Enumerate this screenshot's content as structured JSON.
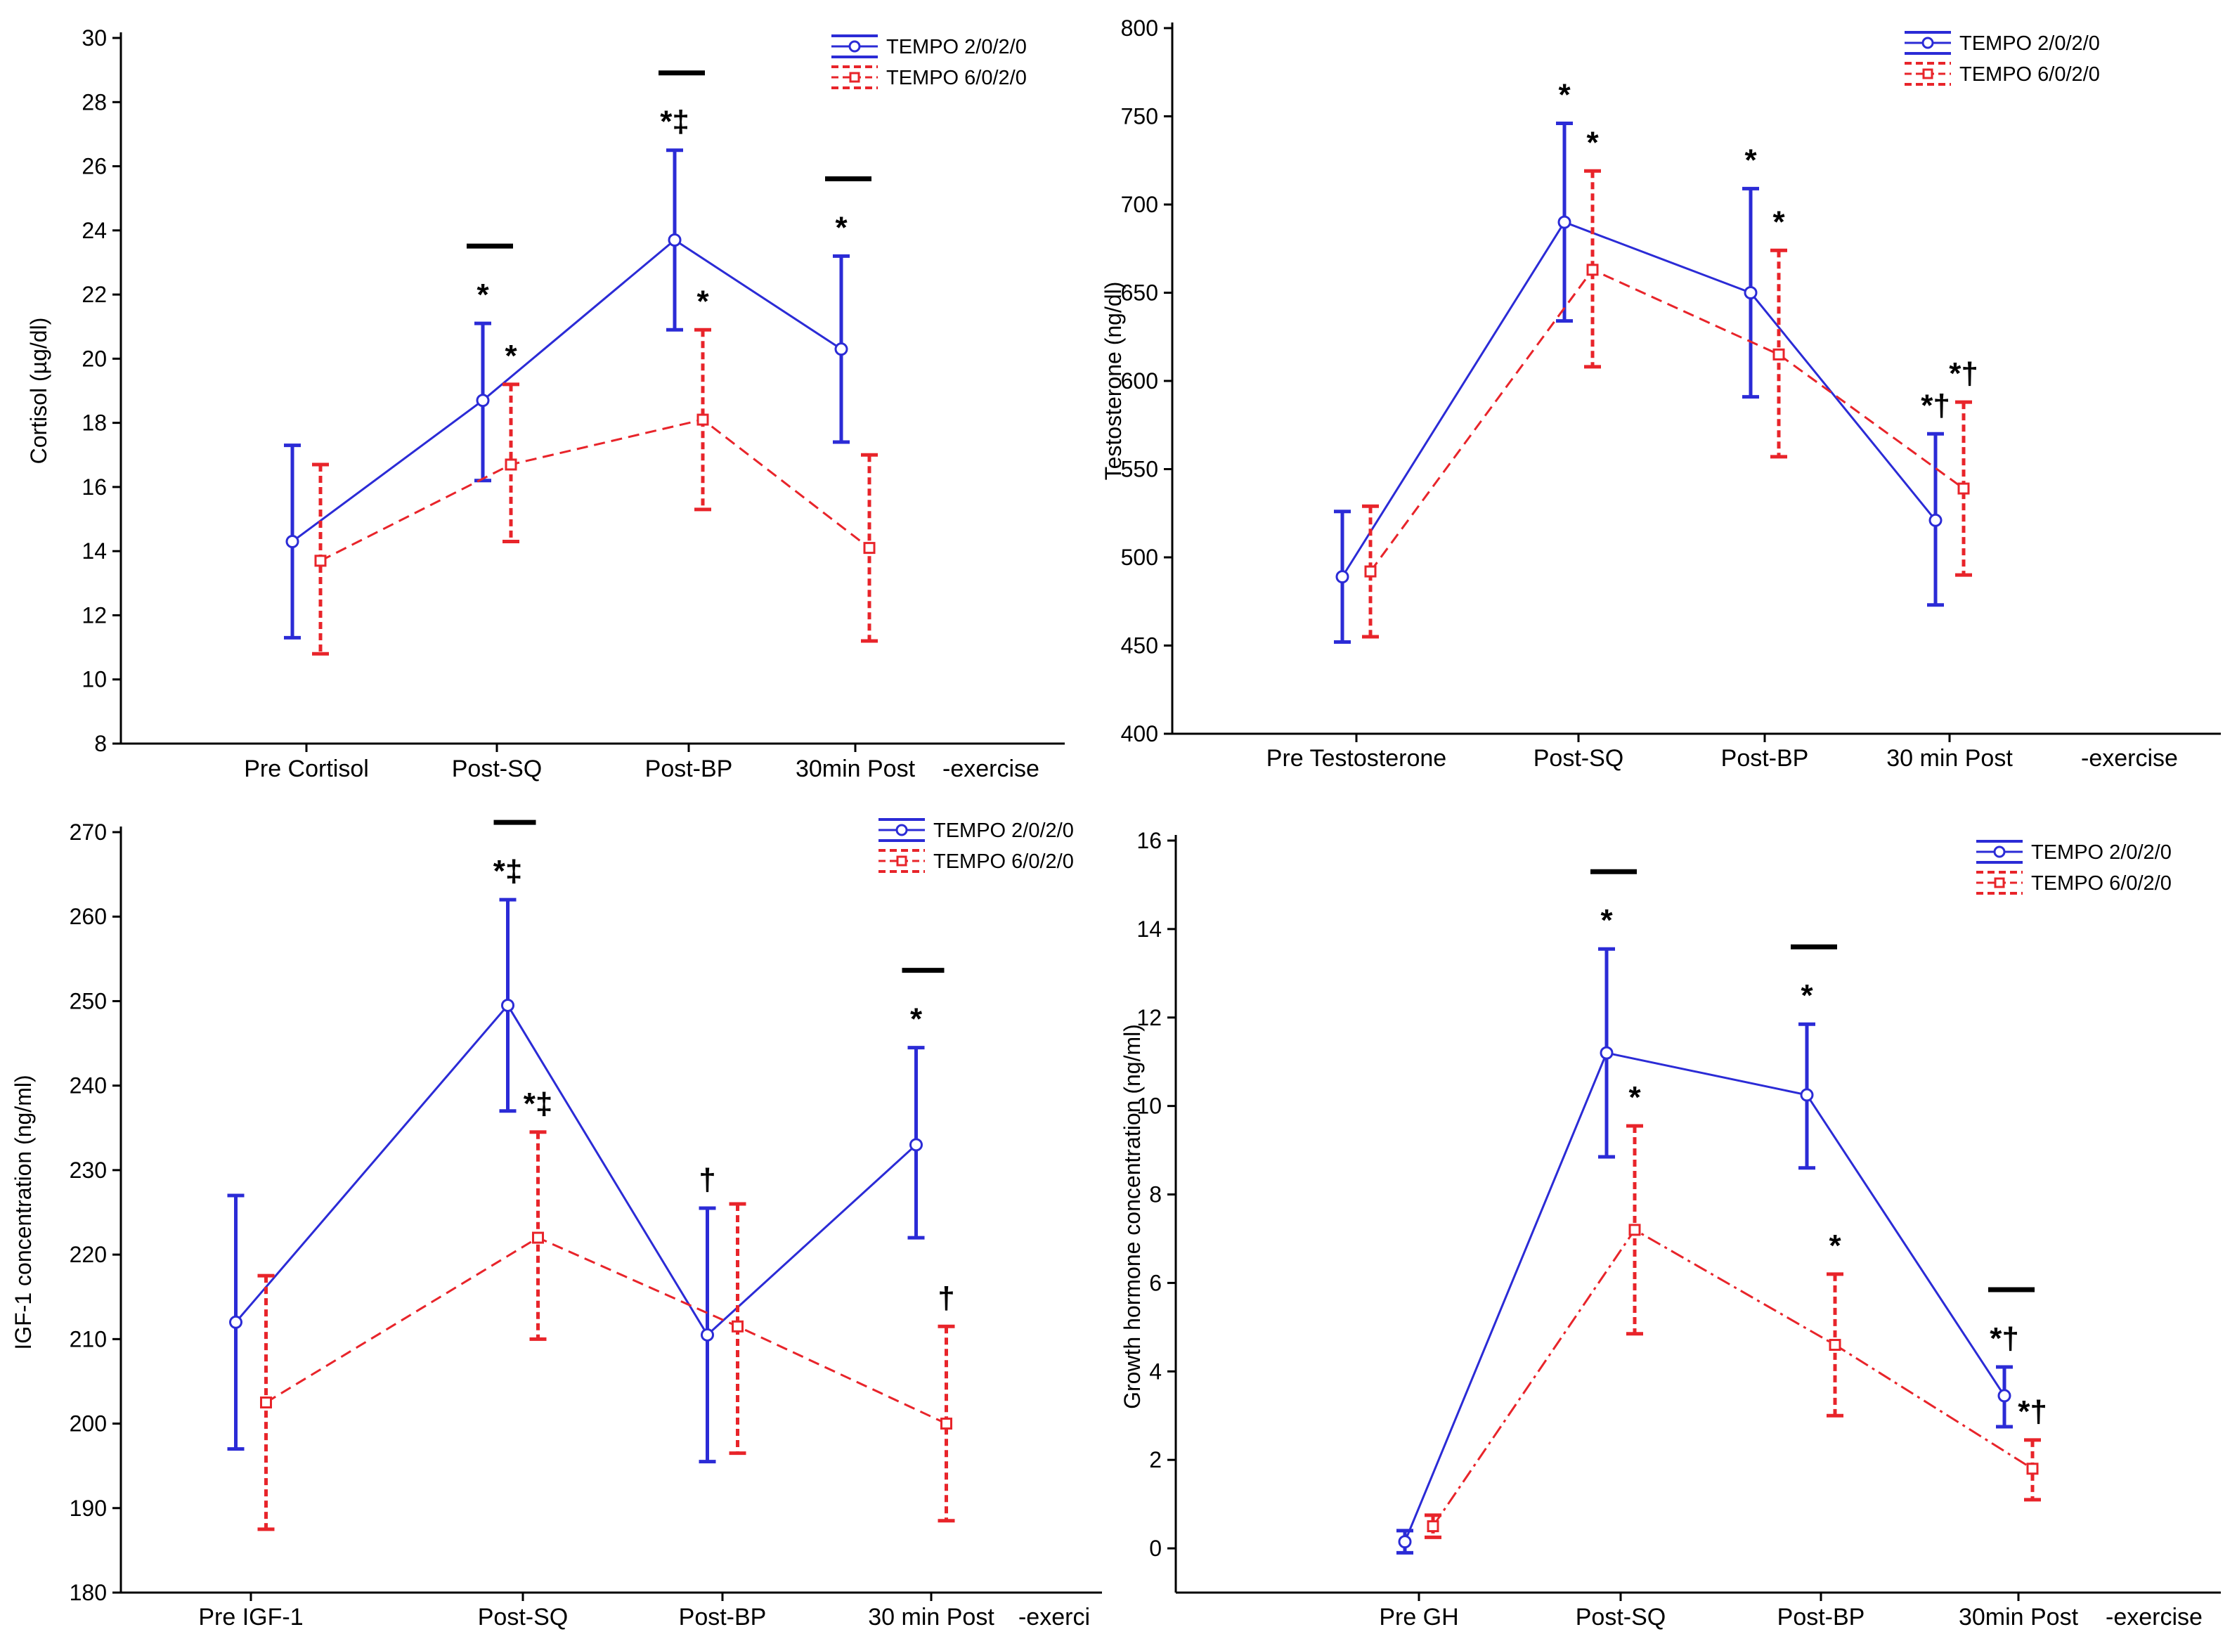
{
  "charts": [
    {
      "id": "cortisol",
      "type": "line",
      "title": "",
      "ylabel": "Cortisol (µg/dl)",
      "ylim": [
        8,
        30
      ],
      "yticks": [
        8,
        10,
        12,
        14,
        16,
        18,
        20,
        22,
        24,
        26,
        28,
        30
      ],
      "categories": [
        "Pre Cortisol",
        "Post-SQ",
        "Post-BP",
        "30min Post"
      ],
      "axis_suffix": "-exercise",
      "legend": [
        "TEMPO 2/0/2/0",
        "TEMPO 6/0/2/0"
      ],
      "series": [
        {
          "name": "TEMPO 2/0/2/0",
          "color": "#2b2bd6",
          "style": "solid",
          "values": [
            14.3,
            18.7,
            23.7,
            20.3
          ],
          "lower": [
            11.3,
            16.2,
            20.9,
            17.4
          ],
          "upper": [
            17.3,
            21.1,
            26.5,
            23.2
          ]
        },
        {
          "name": "TEMPO 6/0/2/0",
          "color": "#e8242a",
          "style": "dashed",
          "values": [
            13.7,
            16.7,
            18.1,
            14.1
          ],
          "lower": [
            10.8,
            14.3,
            15.3,
            11.2
          ],
          "upper": [
            16.7,
            19.2,
            20.9,
            17.0
          ]
        }
      ],
      "annotations": [
        {
          "cat": 1,
          "series": 0,
          "text": "*"
        },
        {
          "cat": 1,
          "series": 1,
          "text": "*"
        },
        {
          "cat": 2,
          "series": 0,
          "text": "*‡"
        },
        {
          "cat": 2,
          "series": 1,
          "text": "*"
        },
        {
          "cat": 3,
          "series": 0,
          "text": "*"
        }
      ],
      "bars": [
        1,
        2,
        3
      ]
    },
    {
      "id": "testosterone",
      "type": "line",
      "title": "",
      "ylabel": "Testosterone (ng/dl)",
      "ylim": [
        400,
        800
      ],
      "yticks": [
        400,
        450,
        500,
        550,
        600,
        650,
        700,
        750,
        800
      ],
      "categories": [
        "Pre Testosterone",
        "Post-SQ",
        "Post-BP",
        "30 min Post"
      ],
      "axis_suffix": "-exercise",
      "legend": [
        "TEMPO 2/0/2/0",
        "TEMPO 6/0/2/0"
      ],
      "series": [
        {
          "name": "TEMPO 2/0/2/0",
          "color": "#2b2bd6",
          "style": "solid",
          "values": [
            489,
            690,
            650,
            521
          ],
          "lower": [
            452,
            634,
            591,
            473
          ],
          "upper": [
            526,
            746,
            709,
            570
          ]
        },
        {
          "name": "TEMPO 6/0/2/0",
          "color": "#e8242a",
          "style": "dashed",
          "values": [
            492,
            663,
            615,
            539
          ],
          "lower": [
            455,
            608,
            557,
            490
          ],
          "upper": [
            529,
            719,
            674,
            588
          ]
        }
      ],
      "annotations": [
        {
          "cat": 1,
          "series": 0,
          "text": "*"
        },
        {
          "cat": 1,
          "series": 1,
          "text": "*"
        },
        {
          "cat": 2,
          "series": 0,
          "text": "*"
        },
        {
          "cat": 2,
          "series": 1,
          "text": "*"
        },
        {
          "cat": 3,
          "series": 0,
          "text": "*†"
        },
        {
          "cat": 3,
          "series": 1,
          "text": "*†"
        }
      ],
      "bars": []
    },
    {
      "id": "igf1",
      "type": "line",
      "title": "",
      "ylabel": "IGF-1 concentration (ng/ml)",
      "ylim": [
        180,
        270
      ],
      "yticks": [
        180,
        190,
        200,
        210,
        220,
        230,
        240,
        250,
        260,
        270
      ],
      "categories": [
        "Pre IGF-1",
        "Post-SQ",
        "Post-BP",
        "30 min Post"
      ],
      "axis_suffix": "-exerci",
      "legend": [
        "TEMPO 2/0/2/0",
        "TEMPO 6/0/2/0"
      ],
      "series": [
        {
          "name": "TEMPO 2/0/2/0",
          "color": "#2b2bd6",
          "style": "solid",
          "values": [
            212,
            249.5,
            210.5,
            233
          ],
          "lower": [
            197,
            237,
            195.5,
            222
          ],
          "upper": [
            227,
            262,
            225.5,
            244.5
          ]
        },
        {
          "name": "TEMPO 6/0/2/0",
          "color": "#e8242a",
          "style": "dashed",
          "values": [
            202.5,
            222,
            211.5,
            200
          ],
          "lower": [
            187.5,
            210,
            196.5,
            188.5
          ],
          "upper": [
            217.5,
            234.5,
            226,
            211.5
          ]
        }
      ],
      "annotations": [
        {
          "cat": 1,
          "series": 0,
          "text": "*‡"
        },
        {
          "cat": 1,
          "series": 1,
          "text": "*‡"
        },
        {
          "cat": 2,
          "series": 0,
          "text": "†"
        },
        {
          "cat": 3,
          "series": 0,
          "text": "*"
        },
        {
          "cat": 3,
          "series": 1,
          "text": "†"
        }
      ],
      "bars": [
        1,
        3
      ]
    },
    {
      "id": "gh",
      "type": "line",
      "title": "",
      "ylabel": "Growth hormone concentration (ng/ml)",
      "ylim": [
        -1,
        16
      ],
      "yticks": [
        0,
        2,
        4,
        6,
        8,
        10,
        12,
        14,
        16
      ],
      "categories": [
        "Pre GH",
        "Post-SQ",
        "Post-BP",
        "30min Post"
      ],
      "axis_suffix": "-exercise",
      "legend": [
        "TEMPO 2/0/2/0",
        "TEMPO 6/0/2/0"
      ],
      "series": [
        {
          "name": "TEMPO 2/0/2/0",
          "color": "#2b2bd6",
          "style": "solid",
          "values": [
            0.15,
            11.2,
            10.25,
            3.45
          ],
          "lower": [
            -0.1,
            8.85,
            8.6,
            2.75
          ],
          "upper": [
            0.4,
            13.55,
            11.85,
            4.1
          ]
        },
        {
          "name": "TEMPO 6/0/2/0",
          "color": "#e8242a",
          "style": "dashdot",
          "values": [
            0.5,
            7.2,
            4.6,
            1.8
          ],
          "lower": [
            0.25,
            4.85,
            3.0,
            1.1
          ],
          "upper": [
            0.75,
            9.55,
            6.2,
            2.45
          ]
        }
      ],
      "annotations": [
        {
          "cat": 1,
          "series": 0,
          "text": "*"
        },
        {
          "cat": 1,
          "series": 1,
          "text": "*"
        },
        {
          "cat": 2,
          "series": 0,
          "text": "*"
        },
        {
          "cat": 2,
          "series": 1,
          "text": "*"
        },
        {
          "cat": 3,
          "series": 0,
          "text": "*†"
        },
        {
          "cat": 3,
          "series": 1,
          "text": "*†"
        }
      ],
      "bars": [
        1,
        2,
        3
      ]
    }
  ]
}
